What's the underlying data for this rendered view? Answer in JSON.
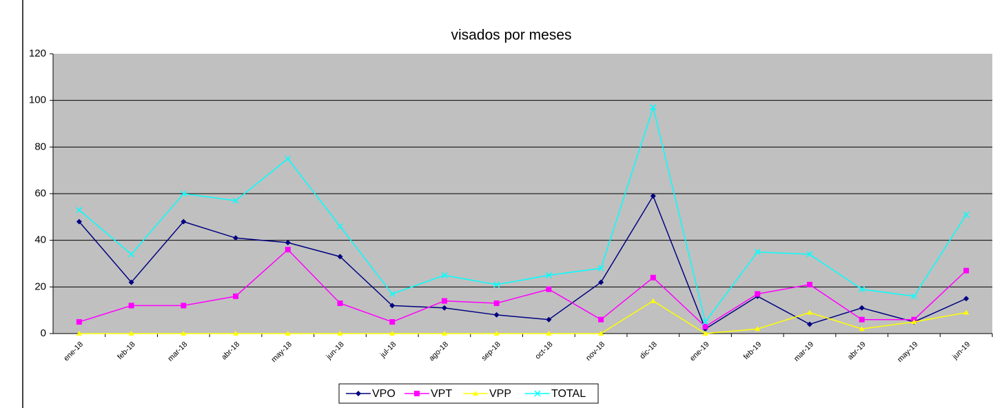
{
  "chart_data": {
    "type": "line",
    "title": "visados por meses",
    "categories": [
      "ene-18",
      "feb-18",
      "mar-18",
      "abr-18",
      "may-18",
      "jun-18",
      "jul-18",
      "ago-18",
      "sep-18",
      "oct-18",
      "nov-18",
      "dic-18",
      "ene-19",
      "feb-19",
      "mar-19",
      "abr-19",
      "may-19",
      "jun-19"
    ],
    "series": [
      {
        "name": "VPO",
        "color": "#000080",
        "marker": "diamond",
        "values": [
          48,
          22,
          48,
          41,
          39,
          33,
          12,
          11,
          8,
          6,
          22,
          59,
          2,
          16,
          4,
          11,
          5,
          15
        ]
      },
      {
        "name": "VPT",
        "color": "#ff00ff",
        "marker": "square",
        "values": [
          5,
          12,
          12,
          16,
          36,
          13,
          5,
          14,
          13,
          19,
          6,
          24,
          3,
          17,
          21,
          6,
          6,
          27
        ]
      },
      {
        "name": "VPP",
        "color": "#ffff00",
        "marker": "triangle",
        "values": [
          0,
          0,
          0,
          0,
          0,
          0,
          0,
          0,
          0,
          0,
          0,
          14,
          0,
          2,
          9,
          2,
          5,
          9
        ]
      },
      {
        "name": "TOTAL",
        "color": "#00ffff",
        "marker": "x",
        "values": [
          53,
          34,
          60,
          57,
          75,
          46,
          17,
          25,
          21,
          25,
          28,
          97,
          5,
          35,
          34,
          19,
          16,
          51
        ]
      }
    ],
    "ylim": [
      0,
      120
    ],
    "yticks": [
      0,
      20,
      40,
      60,
      80,
      100,
      120
    ],
    "grid": true,
    "legend": "bottom"
  }
}
